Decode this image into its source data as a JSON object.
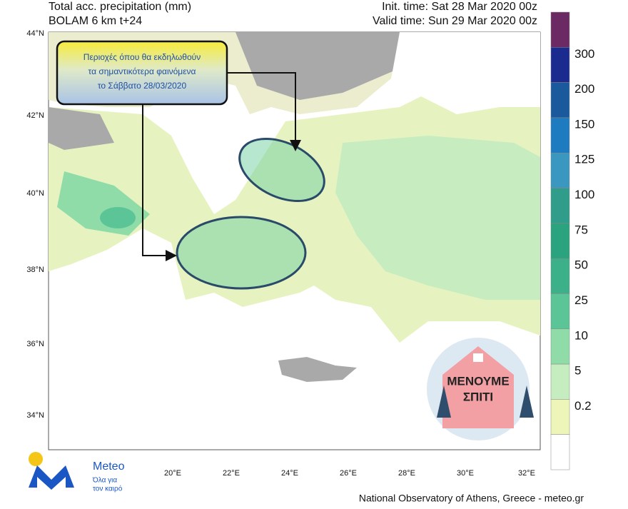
{
  "header": {
    "left_lines": [
      "Total acc. precipitation (mm)",
      "BOLAM 6 km t+24"
    ],
    "right_lines": [
      "Init. time: Sat 28 Mar 2020 00z",
      "Valid time: Sun 29 Mar 2020 00z"
    ]
  },
  "map": {
    "lat_labels": [
      "44°N",
      "42°N",
      "40°N",
      "38°N",
      "36°N",
      "34°N"
    ],
    "lon_labels": [
      "20°E",
      "22°E",
      "24°E",
      "26°E",
      "28°E",
      "30°E",
      "32°E"
    ],
    "annotation_lines": [
      "Περιοχές όπου θα εκδηλωθούν",
      "τα σημαντικότερα φαινόμενα",
      "το Σάββατο 28/03/2020"
    ],
    "badge_lines": [
      "ΜΕΝΟΥΜΕ",
      "ΣΠΙΤΙ"
    ]
  },
  "colorbar": {
    "labels": [
      "300",
      "200",
      "150",
      "125",
      "100",
      "75",
      "50",
      "25",
      "10",
      "5",
      "0.2"
    ]
  },
  "logo": {
    "name": "Meteo",
    "tagline_lines": [
      "Όλα για",
      "τον καιρό"
    ]
  },
  "footer": "National Observatory of Athens, Greece - meteo.gr"
}
